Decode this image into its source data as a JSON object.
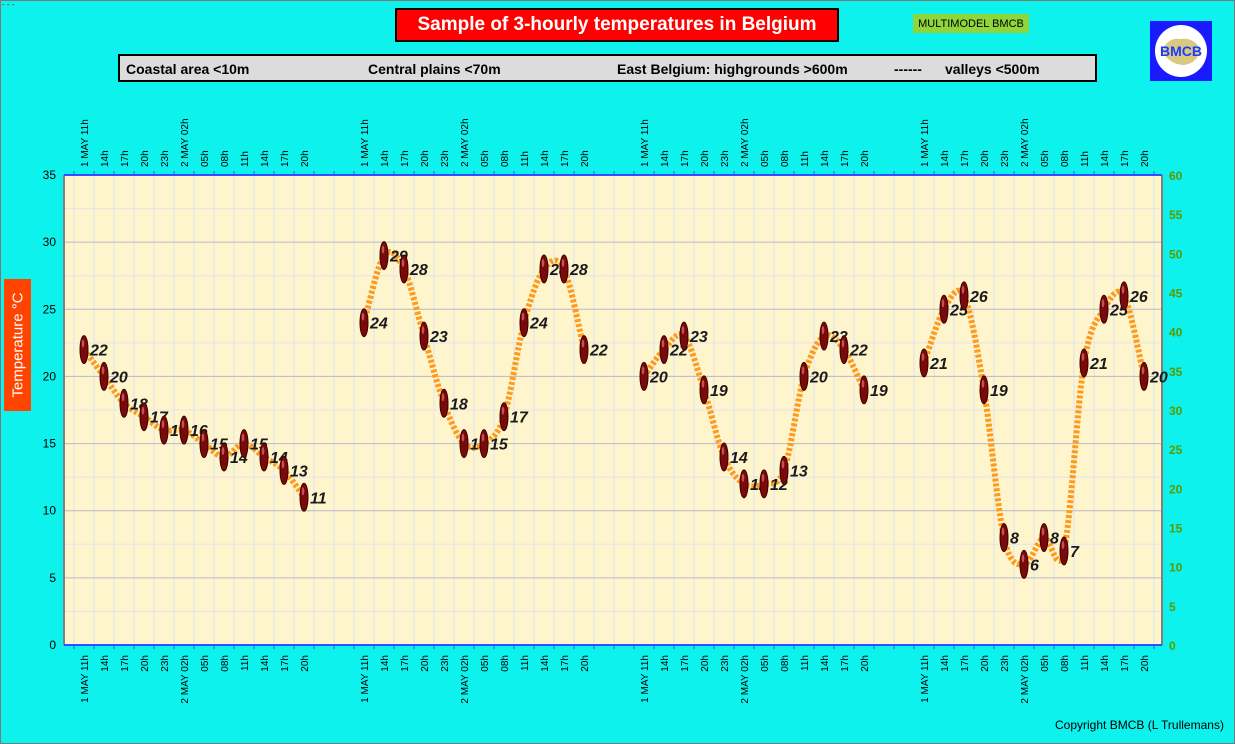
{
  "header": {
    "title": "Sample of 3-hourly temperatures in Belgium",
    "badge": "MULTIMODEL BMCB",
    "logo_text": "BMCB"
  },
  "regions": {
    "coastal": "Coastal area <10m",
    "central": "Central plains <70m",
    "east": "East Belgium: highgrounds >600m",
    "separator": "------",
    "valleys": "valleys <500m"
  },
  "footer": {
    "copyright": "Copyright BMCB (L Trullemans)"
  },
  "top_mark": "- - -",
  "chart_data": {
    "type": "line",
    "title": "Sample of 3-hourly temperatures in Belgium",
    "ylabel": "Temperature   °C",
    "ylim": [
      0,
      35
    ],
    "y_ticks": [
      0,
      5,
      10,
      15,
      20,
      25,
      30,
      35
    ],
    "y2lim": [
      0,
      60
    ],
    "y2_ticks": [
      0,
      5,
      10,
      15,
      20,
      25,
      30,
      35,
      40,
      45,
      50,
      55,
      60
    ],
    "grid": true,
    "categories": [
      "1 MAY 11h",
      "14h",
      "17h",
      "20h",
      "23h",
      "2 MAY 02h",
      "05h",
      "08h",
      "11h",
      "14h",
      "17h",
      "20h"
    ],
    "series": [
      {
        "name": "Coastal area <10m",
        "values": [
          22,
          20,
          18,
          17,
          16,
          16,
          15,
          14,
          15,
          14,
          13,
          11
        ]
      },
      {
        "name": "Central plains <70m",
        "values": [
          24,
          29,
          28,
          23,
          18,
          15,
          15,
          17,
          24,
          28,
          28,
          22
        ]
      },
      {
        "name": "East Belgium: highgrounds >600m",
        "values": [
          20,
          22,
          23,
          19,
          14,
          12,
          12,
          13,
          20,
          23,
          22,
          19
        ]
      },
      {
        "name": "valleys <500m",
        "values": [
          21,
          25,
          26,
          19,
          8,
          6,
          8,
          7,
          21,
          25,
          26,
          20
        ]
      }
    ],
    "colors": {
      "background": "#0ef2ee",
      "plot_area": "#fff5cc",
      "line": "#ff9a1a",
      "marker": "#7a0a0a",
      "y2_axis": "#5a9a00"
    }
  }
}
